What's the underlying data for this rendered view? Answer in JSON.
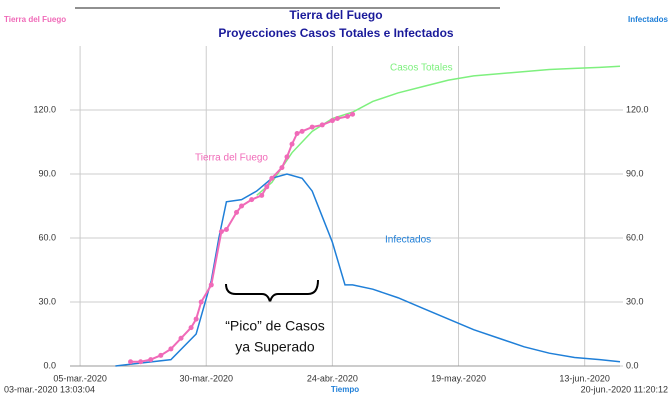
{
  "chart_data": {
    "type": "line",
    "title": "Tierra del Fuego",
    "subtitle": "Proyecciones Casos Totales e Infectados",
    "x_label": "Tiempo",
    "y_label": "Tierra del Fuego",
    "y2_label": "Infectados",
    "range_labels": [
      "03-mar.-2020 13:03:04",
      "20-jun.-2020 11:20:12"
    ],
    "xlim": [
      0,
      109
    ],
    "xticks": [
      {
        "value": 2,
        "label": "05-mar.-2020"
      },
      {
        "value": 27,
        "label": "30-mar.-2020"
      },
      {
        "value": 52,
        "label": "24-abr.-2020"
      },
      {
        "value": 77,
        "label": "19-may.-2020"
      },
      {
        "value": 102,
        "label": "13-jun.-2020"
      }
    ],
    "ylim": [
      0,
      150
    ],
    "yticks": [
      {
        "value": 0,
        "label": "0.0"
      },
      {
        "value": 30,
        "label": "30.0"
      },
      {
        "value": 60,
        "label": "60.0"
      },
      {
        "value": 90,
        "label": "90.0"
      },
      {
        "value": 120,
        "label": "120.0"
      }
    ],
    "y2lim": [
      0,
      150
    ],
    "y2ticks": [
      {
        "value": 0,
        "label": "0.0"
      },
      {
        "value": 30,
        "label": "30.0"
      },
      {
        "value": 60,
        "label": "60.0"
      },
      {
        "value": 90,
        "label": "90.0"
      },
      {
        "value": 120,
        "label": "120.0"
      }
    ],
    "grid": true,
    "series": [
      {
        "name": "Casos Totales",
        "color": "#7ef07e",
        "markers": false,
        "x": [
          37,
          40,
          44,
          48,
          52,
          56,
          60,
          65,
          70,
          75,
          80,
          85,
          90,
          95,
          100,
          105,
          109
        ],
        "values": [
          80,
          86,
          100,
          110,
          116,
          119,
          124,
          128,
          131,
          134,
          136,
          137,
          138,
          139,
          139.5,
          140,
          140.5
        ]
      },
      {
        "name": "Infectados",
        "color": "#1f7fd8",
        "markers": false,
        "axis": "y2",
        "x": [
          9,
          20,
          25,
          28,
          29.5,
          31,
          34,
          37,
          40,
          43,
          46,
          48,
          50,
          52,
          54,
          54.5,
          56,
          60,
          65,
          70,
          75,
          80,
          85,
          90,
          95,
          100,
          105,
          109
        ],
        "values": [
          0,
          3,
          15,
          40,
          60,
          77,
          78,
          82,
          88,
          90,
          88,
          82,
          70,
          58,
          42,
          38,
          38,
          36,
          32,
          27,
          22,
          17,
          13,
          9,
          6,
          4,
          3,
          2
        ]
      },
      {
        "name": "Tierra del Fuego",
        "color": "#f06ab8",
        "markers": true,
        "x": [
          12,
          14,
          16,
          18,
          20,
          22,
          24,
          25,
          26,
          28,
          30,
          31,
          33,
          34,
          36,
          38,
          39,
          40,
          42,
          43,
          44,
          45,
          46,
          48,
          50,
          52,
          53,
          55,
          56
        ],
        "values": [
          2,
          2,
          3,
          5,
          8,
          13,
          18,
          22,
          30,
          38,
          63,
          64,
          72,
          75,
          78,
          80,
          84,
          88,
          93,
          98,
          104,
          109,
          110,
          112,
          113,
          115,
          116,
          117,
          118
        ]
      }
    ],
    "annotation": [
      "“Pico” de Casos",
      "ya Superado"
    ]
  }
}
